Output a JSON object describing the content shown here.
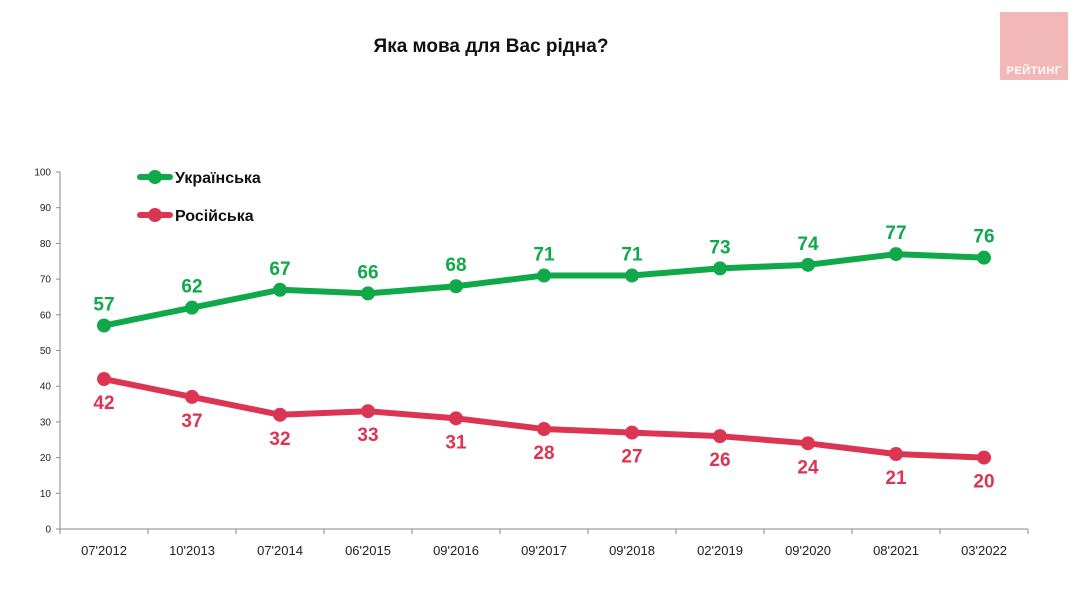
{
  "chart_data": {
    "type": "line",
    "title": "Яка мова для Вас рідна?",
    "xlabel": "",
    "ylabel": "",
    "categories": [
      "07'2012",
      "10'2013",
      "07'2014",
      "06'2015",
      "09'2016",
      "09'2017",
      "09'2018",
      "02'2019",
      "09'2020",
      "08'2021",
      "03'2022"
    ],
    "series": [
      {
        "name": "Українська",
        "color": "#10a94a",
        "label_position": "above",
        "values": [
          57,
          62,
          67,
          66,
          68,
          71,
          71,
          73,
          74,
          77,
          76
        ]
      },
      {
        "name": "Російська",
        "color": "#dc3553",
        "label_position": "below",
        "values": [
          42,
          37,
          32,
          33,
          31,
          28,
          27,
          26,
          24,
          21,
          20
        ]
      }
    ],
    "ylim": [
      0,
      100
    ],
    "yticks": [
      0,
      10,
      20,
      30,
      40,
      50,
      60,
      70,
      80,
      90,
      100
    ],
    "grid": false,
    "legend_position": "top-left"
  },
  "logo": {
    "text": "РЕЙТИНГ",
    "color": "#f2b8b8"
  }
}
